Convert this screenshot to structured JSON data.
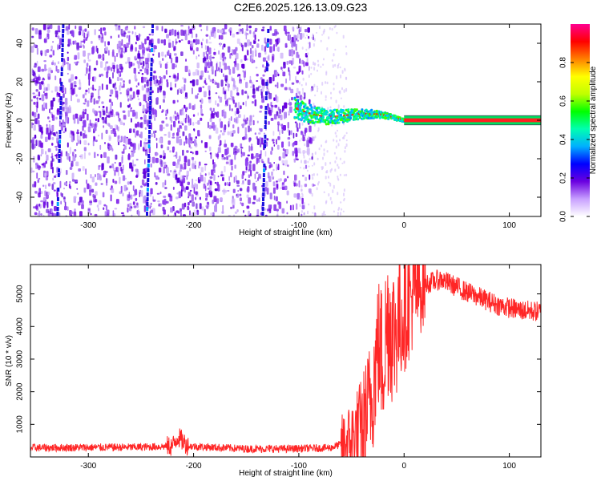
{
  "title": "C2E6.2025.126.13.09.G23",
  "chart_data": [
    {
      "type": "heatmap",
      "xlabel": "Height of straight line (km)",
      "ylabel": "Frequency (Hz)",
      "xlim": [
        -355,
        130
      ],
      "ylim": [
        -50,
        50
      ],
      "xticks": [
        -300,
        -200,
        -100,
        0,
        100
      ],
      "yticks": [
        -40,
        -20,
        0,
        20,
        40
      ],
      "colorbar": {
        "label": "Normalized spectral amplitude",
        "range": [
          0,
          1
        ],
        "ticks": [
          "0.0",
          "0.2",
          "0.4",
          "0.6",
          "0.8"
        ],
        "colors": [
          "#ffffff",
          "#c8a0ff",
          "#6a00e0",
          "#0000ff",
          "#00b0ff",
          "#00ffb0",
          "#00ff00",
          "#c0ff00",
          "#ffff00",
          "#ff8000",
          "#ff0000",
          "#ff0090"
        ]
      },
      "features": {
        "noise_region_x": [
          -355,
          -100
        ],
        "signal_line_frequency": 0,
        "vertical_streaks_x": [
          -325,
          -240,
          -130
        ]
      }
    },
    {
      "type": "line",
      "xlabel": "Height of straight line (km)",
      "ylabel": "SNR (10 * v/v)",
      "xlim": [
        -355,
        130
      ],
      "ylim": [
        0,
        5900
      ],
      "xticks": [
        -300,
        -200,
        -100,
        0,
        100
      ],
      "yticks": [
        1000,
        2000,
        3000,
        4000,
        5000
      ],
      "series_color": "#ff0000",
      "envelope_points": [
        {
          "x": -355,
          "y": 280
        },
        {
          "x": -250,
          "y": 300
        },
        {
          "x": -220,
          "y": 330
        },
        {
          "x": -215,
          "y": 620
        },
        {
          "x": -205,
          "y": 330
        },
        {
          "x": -150,
          "y": 250
        },
        {
          "x": -110,
          "y": 250
        },
        {
          "x": -70,
          "y": 280
        },
        {
          "x": -50,
          "y": 500
        },
        {
          "x": -40,
          "y": 900
        },
        {
          "x": -30,
          "y": 2000
        },
        {
          "x": -25,
          "y": 3500
        },
        {
          "x": -20,
          "y": 3000
        },
        {
          "x": -15,
          "y": 4300
        },
        {
          "x": -10,
          "y": 3800
        },
        {
          "x": 0,
          "y": 4500
        },
        {
          "x": 10,
          "y": 5000
        },
        {
          "x": 20,
          "y": 5300
        },
        {
          "x": 35,
          "y": 5450
        },
        {
          "x": 60,
          "y": 5050
        },
        {
          "x": 90,
          "y": 4650
        },
        {
          "x": 110,
          "y": 4500
        },
        {
          "x": 130,
          "y": 4450
        }
      ]
    }
  ]
}
